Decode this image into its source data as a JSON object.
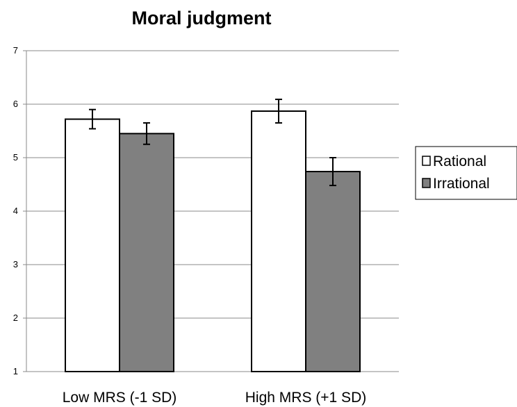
{
  "chart_data": {
    "type": "bar",
    "title": "Moral judgment",
    "xlabel": "",
    "ylabel": "",
    "categories": [
      "Low MRS (-1 SD)",
      "High MRS (+1 SD)"
    ],
    "series": [
      {
        "name": "Rational",
        "values": [
          5.72,
          5.87
        ],
        "error": [
          0.18,
          0.22
        ],
        "color": "#ffffff"
      },
      {
        "name": "Irrational",
        "values": [
          5.45,
          4.74
        ],
        "error": [
          0.2,
          0.26
        ],
        "color": "#808080"
      }
    ],
    "ylim": [
      1,
      7
    ],
    "yticks": [
      "1",
      "2",
      "3",
      "4",
      "5",
      "6",
      "7"
    ],
    "grid": true,
    "legend_position": "right",
    "error_bars": true
  }
}
